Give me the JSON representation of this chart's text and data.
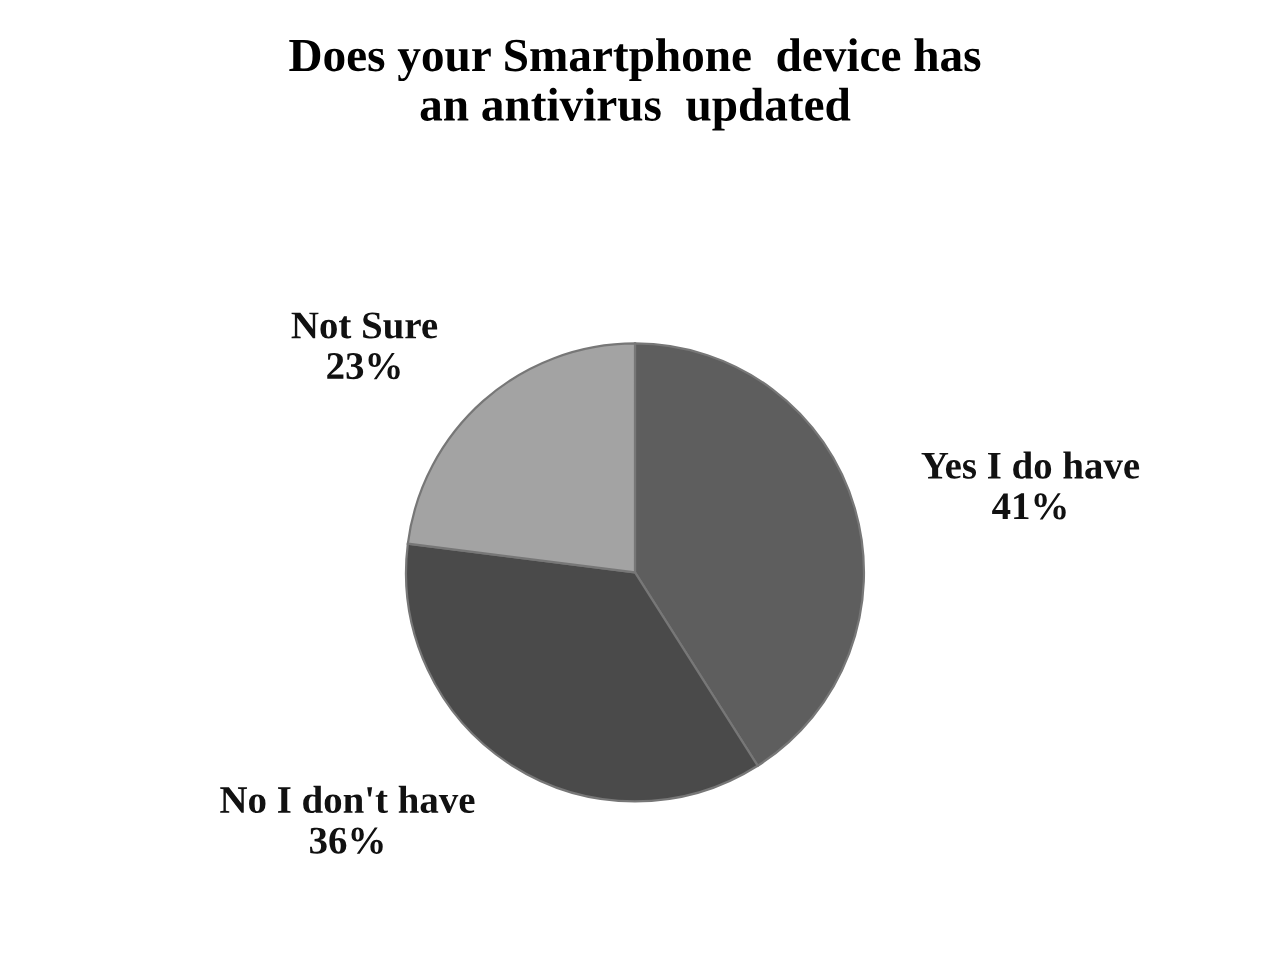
{
  "chart_data": {
    "type": "pie",
    "title": "Does your Smartphone  device has\nan antivirus  updated",
    "categories": [
      "Yes I do have",
      "No I don't have",
      "Not Sure"
    ],
    "values": [
      41,
      36,
      23
    ],
    "colors": [
      "#5e5e5e",
      "#4a4a4a",
      "#a3a3a3"
    ],
    "value_labels": [
      "41%",
      "36%",
      "23%"
    ],
    "legend": false
  }
}
